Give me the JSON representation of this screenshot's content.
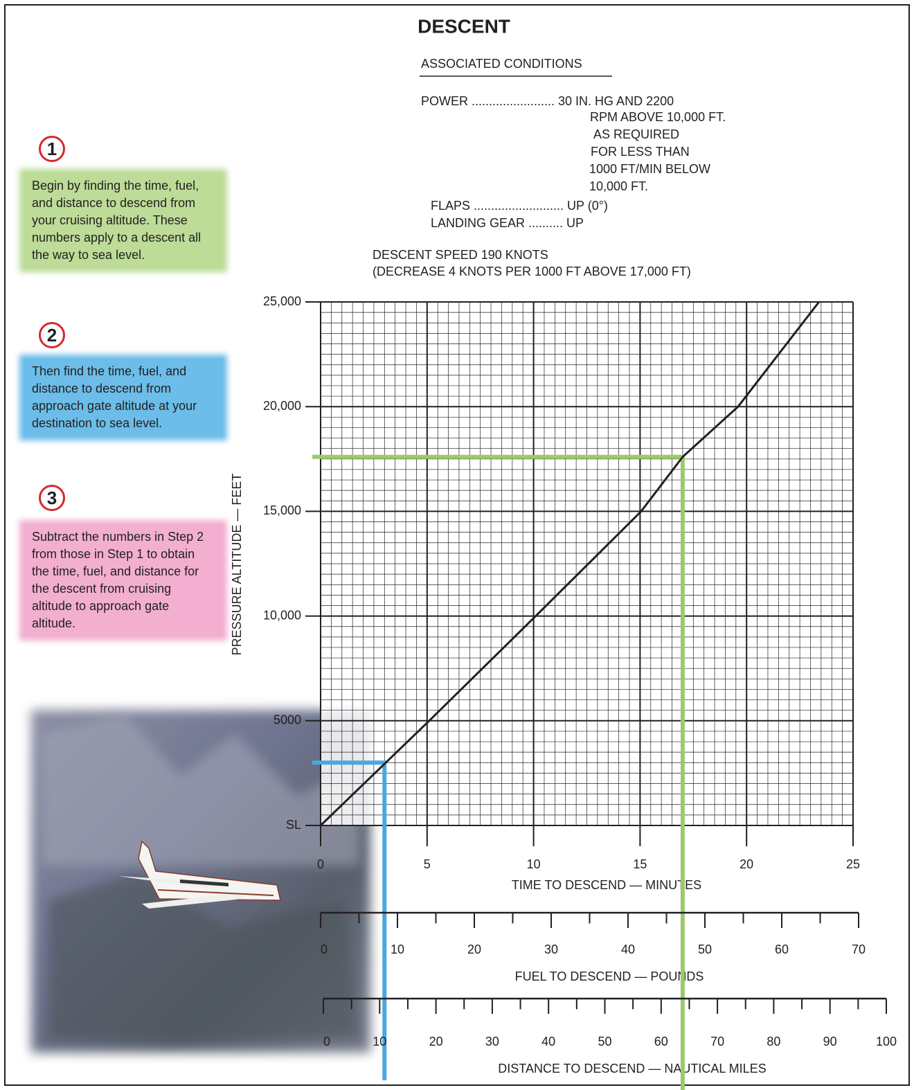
{
  "chart_data": {
    "type": "line",
    "title": "DESCENT",
    "conditions": {
      "heading": "ASSOCIATED CONDITIONS",
      "lines": [
        "POWER ........................ 30 IN. HG AND 2200",
        "RPM ABOVE 10,000 FT.",
        "AS REQUIRED",
        "FOR LESS THAN",
        "1000 FT/MIN BELOW",
        "10,000 FT.",
        "FLAPS .......................... UP (0°)",
        "LANDING GEAR .......... UP",
        "DESCENT SPEED 190  KNOTS",
        "(DECREASE 4 KNOTS PER 1000 FT ABOVE 17,000 FT)"
      ]
    },
    "x_label": "TIME TO DESCEND — MINUTES",
    "y_label": "PRESSURE ALTITUDE — FEET",
    "x": [
      0,
      5.1,
      10.1,
      15.05,
      17,
      19.6,
      23.4
    ],
    "values": [
      0,
      5000,
      10000,
      15000,
      17600,
      20000,
      25000
    ],
    "color": "#231f20",
    "xlim": [
      0,
      25
    ],
    "xticks": [
      0,
      5,
      10,
      15,
      20,
      25
    ],
    "ylim": [
      0,
      25000
    ],
    "yticks": [
      {
        "value": 0,
        "label": "SL"
      },
      5000,
      {
        "value": 10000,
        "label": "10,000"
      },
      {
        "value": 15000,
        "label": "15,000"
      },
      {
        "value": 20000,
        "label": "20,000"
      },
      {
        "value": 25000,
        "label": "25,000"
      }
    ],
    "grid": true,
    "fuel_axis": {
      "label": "FUEL TO DESCEND — POUNDS",
      "xlim": [
        0,
        70
      ],
      "xticks": [
        0,
        10,
        20,
        30,
        40,
        50,
        60,
        70
      ],
      "minor_xticks": [
        5,
        15,
        25,
        35,
        45,
        55,
        65
      ]
    },
    "distance_axis": {
      "label": "DISTANCE TO DESCEND — NAUTICAL MILES",
      "xlim": [
        0,
        100
      ],
      "xticks": [
        0,
        10,
        20,
        30,
        40,
        50,
        60,
        70,
        80,
        90,
        100
      ],
      "minor_xticks": [
        5,
        15,
        25,
        35,
        45,
        55,
        65,
        75,
        85,
        95
      ]
    },
    "guides": [
      {
        "color": "#9dc96e",
        "x": 17,
        "y": 17600
      },
      {
        "color": "#4aa8dc",
        "x": 3,
        "y": 3000
      }
    ]
  },
  "steps": [
    {
      "number": "1",
      "text": "Begin by finding the time, fuel, and distance to descend from your cruising altitude. These numbers apply to a descent all the way to sea level.",
      "color": "#bcdc98"
    },
    {
      "number": "2",
      "text": "Then find the time, fuel, and distance to descend from approach gate altitude at your destination to sea level.",
      "color": "#6cbde9"
    },
    {
      "number": "3",
      "text": "Subtract the numbers in Step 2 from those in Step 1 to obtain the time, fuel, and distance for the descent from cruising altitude to approach gate altitude.",
      "color": "#f2afd0"
    }
  ]
}
